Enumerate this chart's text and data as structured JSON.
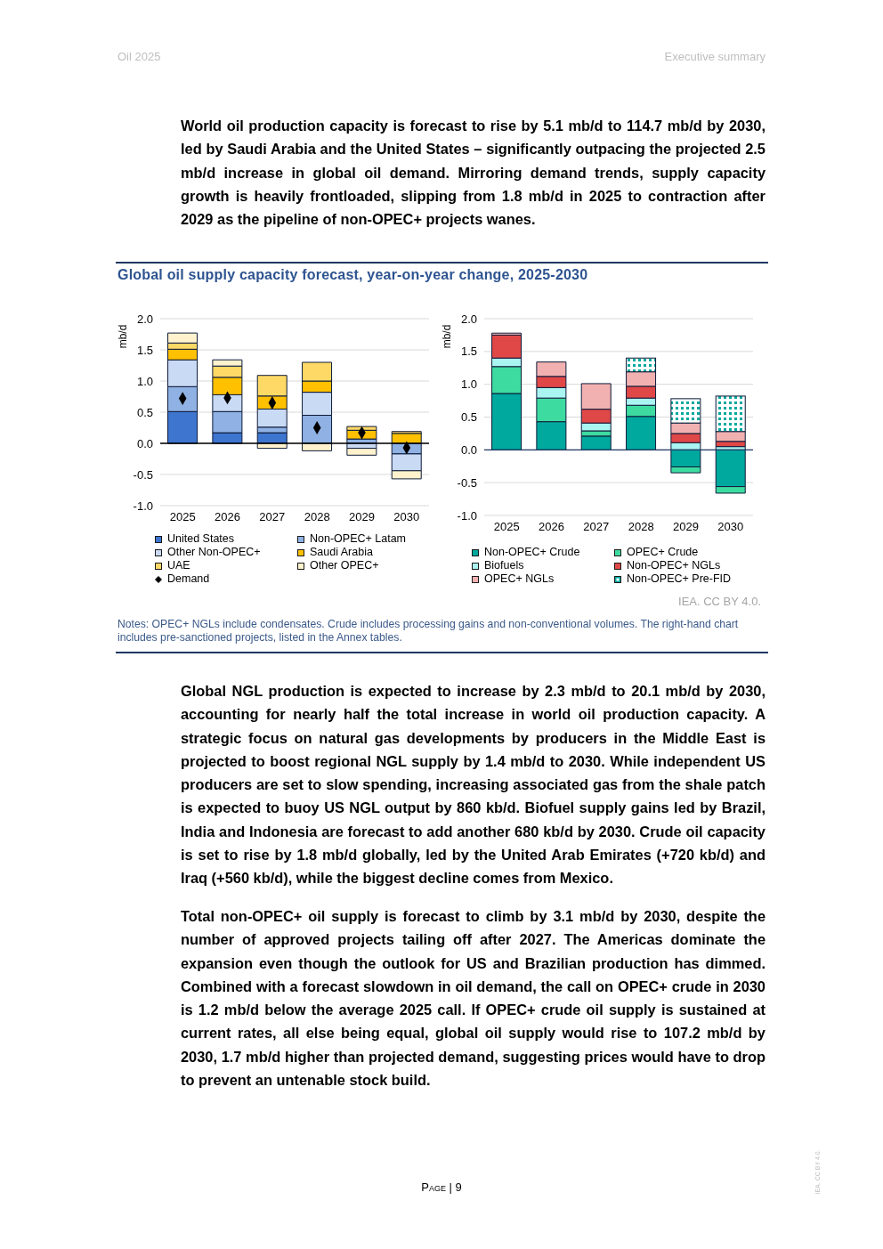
{
  "chart_data": [
    {
      "type": "bar",
      "title": "Global oil supply capacity forecast, year-on-year change, 2025-2030",
      "ylabel": "mb/d",
      "stacked": true,
      "categories": [
        "2025",
        "2026",
        "2027",
        "2028",
        "2029",
        "2030"
      ],
      "series": [
        {
          "name": "United States",
          "color": "#3d75cf",
          "values": [
            0.51,
            0.17,
            0.17,
            0,
            0,
            0
          ]
        },
        {
          "name": "Non-OPEC+ Latam",
          "color": "#8fb1e3",
          "values": [
            0.4,
            0.34,
            0.09,
            0.45,
            0.07,
            -0.17
          ]
        },
        {
          "name": "Other Non-OPEC+",
          "color": "#c9daf4",
          "values": [
            0.43,
            0.27,
            0.29,
            0.37,
            -0.08,
            -0.27
          ]
        },
        {
          "name": "Saudi Arabia",
          "color": "#ffc000",
          "values": [
            0.17,
            0.28,
            0.21,
            0.18,
            0.14,
            0.16
          ]
        },
        {
          "name": "UAE",
          "color": "#ffd966",
          "values": [
            0.1,
            0.18,
            0.33,
            0.3,
            0.06,
            0.03
          ]
        },
        {
          "name": "Other OPEC+",
          "color": "#fff2cc",
          "values": [
            0.16,
            0.1,
            -0.08,
            -0.12,
            -0.11,
            -0.13
          ]
        },
        {
          "name": "Demand",
          "type": "scatter",
          "marker": "diamond",
          "color": "#000000",
          "values": [
            0.72,
            0.73,
            0.65,
            0.25,
            0.17,
            -0.07
          ]
        }
      ],
      "ylim": [
        -1,
        2
      ],
      "yticks": [
        {
          "value": -1,
          "label": "-1.0"
        },
        {
          "value": -0.5,
          "label": "-0.5"
        },
        {
          "value": 0,
          "label": "0.0"
        },
        {
          "value": 0.5,
          "label": "0.5"
        },
        {
          "value": 1,
          "label": "1.0"
        },
        {
          "value": 1.5,
          "label": "1.5"
        },
        {
          "value": 2,
          "label": "2.0"
        }
      ],
      "grid": "y",
      "legend": "bottom",
      "ref_lines": [
        {
          "axis": "y",
          "value": 0,
          "color": "#000000"
        }
      ],
      "annotations": [
        "Oil 2025",
        "Executive summary",
        "World oil production capacity is forecast to rise by 5.1 mb/d to 114.7 mb/d by 2030, led by Saudi Arabia and the United States – significantly outpacing the projected 2.5 mb/d increase in global oil demand. Mirroring demand trends, supply capacity growth is heavily frontloaded, slipping from 1.8 mb/d in 2025 to contraction after 2029 as the pipeline of non-OPEC+ projects wanes.",
        "IEA. CC BY 4.0.",
        "Notes: OPEC+ NGLs include condensates. Crude includes processing gains and non-conventional volumes. The right-hand chart includes pre-sanctioned projects, listed in the Annex tables.",
        "Global NGL production is expected to increase by 2.3 mb/d to 20.1 mb/d by 2030, accounting for nearly half the total increase in world oil production capacity. A strategic focus on natural gas developments by producers in the Middle East is projected to boost regional NGL supply by 1.4 mb/d to 2030. While independent US producers are set to slow spending, increasing associated gas from the shale patch is expected to buoy US NGL output by 860 kb/d. Biofuel supply gains led by Brazil, India and Indonesia are forecast to add another 680 kb/d by 2030. Crude oil capacity is set to rise by 1.8 mb/d globally, led by the United Arab Emirates (+720 kb/d) and Iraq (+560 kb/d), while the biggest decline comes from Mexico.",
        "Total non-OPEC+ oil supply is forecast to climb by 3.1 mb/d by 2030, despite the number of approved projects tailing off after 2027. The Americas dominate the expansion even though the outlook for US and Brazilian production has dimmed. Combined with a forecast slowdown in oil demand, the call on OPEC+ crude in 2030 is 1.2 mb/d below the average 2025 call. If OPEC+ crude oil supply is sustained at current rates, all else being equal, global oil supply would rise to 107.2 mb/d by 2030, 1.7 mb/d higher than projected demand, suggesting prices would have to drop to prevent an untenable stock build.",
        "Page | 9",
        "IEA. CC BY 4.0."
      ]
    },
    {
      "type": "bar",
      "ylabel": "mb/d",
      "stacked": true,
      "categories": [
        "2025",
        "2026",
        "2027",
        "2028",
        "2029",
        "2030"
      ],
      "series": [
        {
          "name": "Non-OPEC+ Crude",
          "color": "#00a99d",
          "values": [
            0.86,
            0.43,
            0.21,
            0.51,
            -0.26,
            -0.56
          ]
        },
        {
          "name": "OPEC+ Crude",
          "color": "#3ddba0",
          "values": [
            0.41,
            0.36,
            0.08,
            0.17,
            -0.09,
            -0.1
          ]
        },
        {
          "name": "Biofuels",
          "color": "#aaf5f2",
          "values": [
            0.13,
            0.16,
            0.12,
            0.11,
            0.11,
            0.05
          ]
        },
        {
          "name": "Non-OPEC+ NGLs",
          "color": "#e04848",
          "values": [
            0.35,
            0.17,
            0.21,
            0.18,
            0.14,
            0.08
          ]
        },
        {
          "name": "OPEC+ NGLs",
          "color": "#f2b1b1",
          "values": [
            0.03,
            0.22,
            0.39,
            0.22,
            0.16,
            0.15
          ]
        },
        {
          "name": "Non-OPEC+ Pre-FID",
          "color": "#00a99d",
          "values": [
            0,
            0,
            0,
            0.21,
            0.37,
            0.54
          ]
        }
      ],
      "ylim": [
        -1,
        2
      ],
      "yticks": [
        {
          "value": -1,
          "label": "-1.0"
        },
        {
          "value": -0.5,
          "label": "-0.5"
        },
        {
          "value": 0,
          "label": "0.0"
        },
        {
          "value": 0.5,
          "label": "0.5"
        },
        {
          "value": 1,
          "label": "1.0"
        },
        {
          "value": 1.5,
          "label": "1.5"
        },
        {
          "value": 2,
          "label": "2.0"
        }
      ],
      "grid": "y",
      "legend": "bottom",
      "ref_lines": [
        {
          "axis": "y",
          "value": 0,
          "color": "#1f3864"
        }
      ]
    }
  ]
}
